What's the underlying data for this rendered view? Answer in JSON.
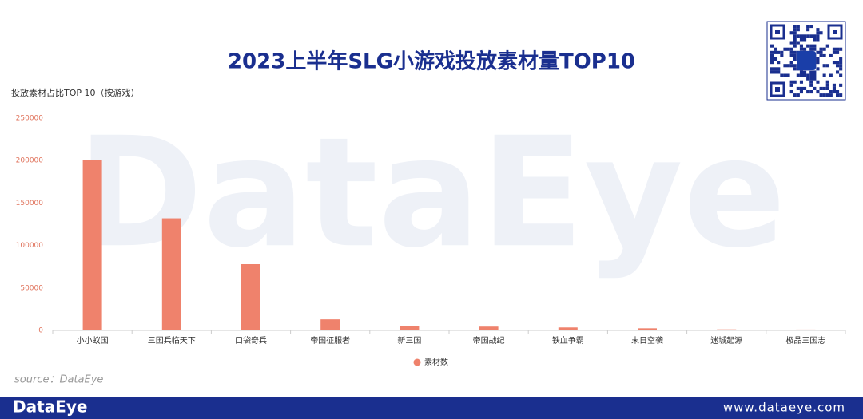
{
  "chart_data": {
    "type": "bar",
    "title": "2023上半年SLG小游戏投放素材量TOP10",
    "subtitle": "投放素材占比TOP 10（按游戏）",
    "categories": [
      "小小蚁国",
      "三国兵临天下",
      "口袋奇兵",
      "帝国征服者",
      "新三国",
      "帝国战纪",
      "铁血争霸",
      "末日空袭",
      "迷城起源",
      "极品三国志"
    ],
    "series": [
      {
        "name": "素材数",
        "color": "#ef826c",
        "values": [
          201000,
          132000,
          78000,
          13000,
          5500,
          4500,
          3500,
          2500,
          1200,
          1000
        ]
      }
    ],
    "ylim": [
      0,
      250000
    ],
    "yticks": [
      0,
      50000,
      100000,
      150000,
      200000,
      250000
    ],
    "grid": false,
    "legend": "bottom",
    "source": "source：DataEye"
  },
  "watermark": "DataEye",
  "footer": {
    "brand": "DataEye",
    "url": "www.dataeye.com"
  }
}
